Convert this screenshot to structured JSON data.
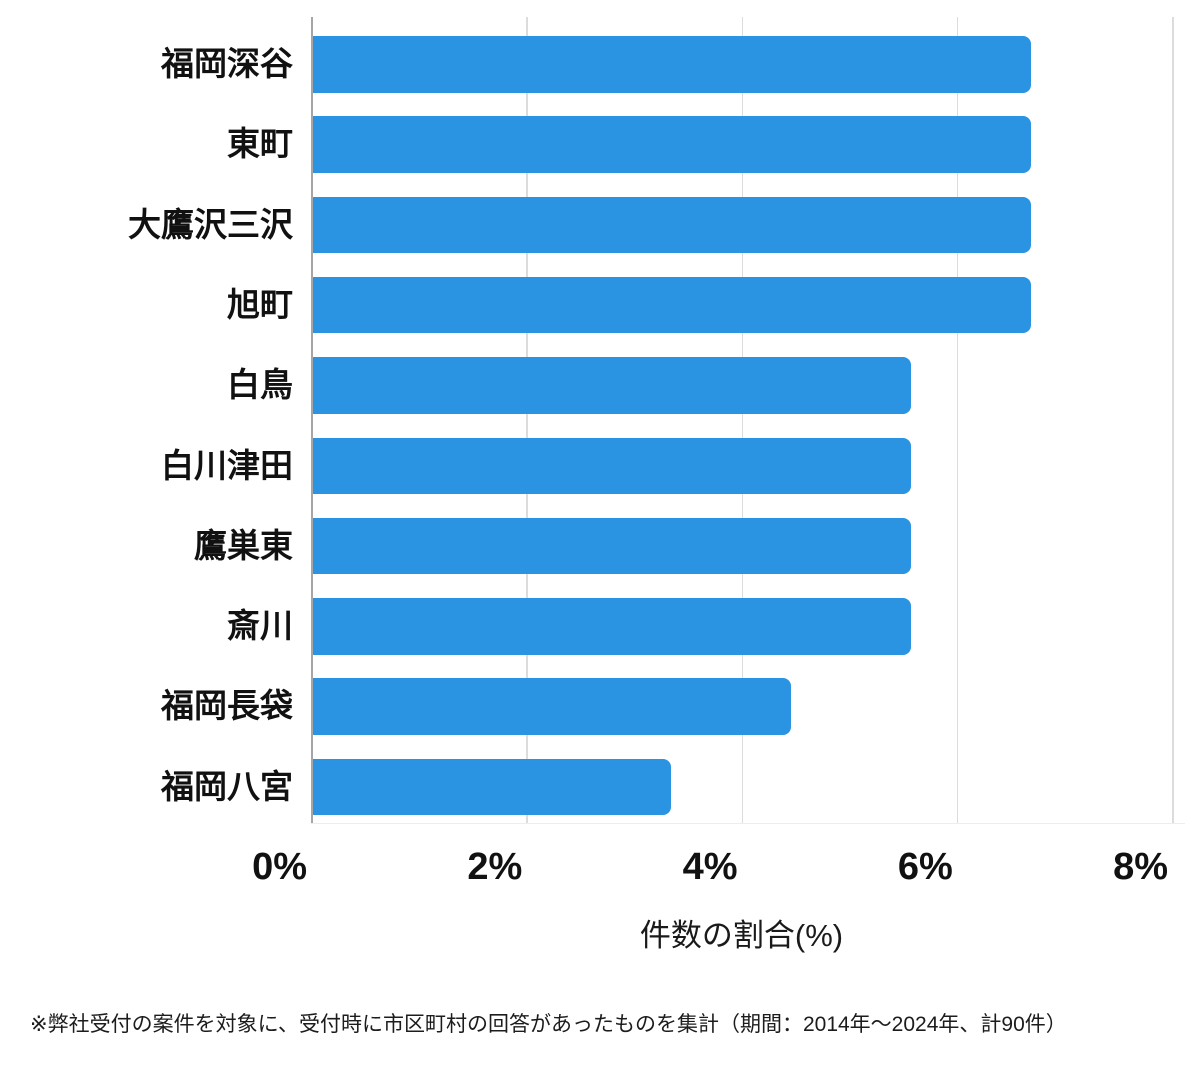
{
  "chart_data": {
    "type": "bar",
    "orientation": "horizontal",
    "categories": [
      "福岡深谷",
      "東町",
      "大鷹沢三沢",
      "旭町",
      "白鳥",
      "白川津田",
      "鷹巣東",
      "斎川",
      "福岡長袋",
      "福岡八宮"
    ],
    "values": [
      6.67,
      6.67,
      6.67,
      6.67,
      5.56,
      5.56,
      5.56,
      5.56,
      4.44,
      3.33
    ],
    "xlabel": "件数の割合(%)",
    "x_ticks": [
      "0%",
      "2%",
      "4%",
      "6%",
      "8%"
    ],
    "x_tick_values": [
      0,
      2,
      4,
      6,
      8
    ],
    "xlim": [
      0,
      8
    ],
    "grid": true,
    "legend": "none",
    "bar_color": "#2A94E2",
    "gridline_color": "#dcdcdc",
    "axis_line_color": "#a6a6a6",
    "text_color": "#111111"
  },
  "footnote": "※弊社受付の案件を対象に、受付時に市区町村の回答があったものを集計（期間：2014年～2024年、計90件）"
}
